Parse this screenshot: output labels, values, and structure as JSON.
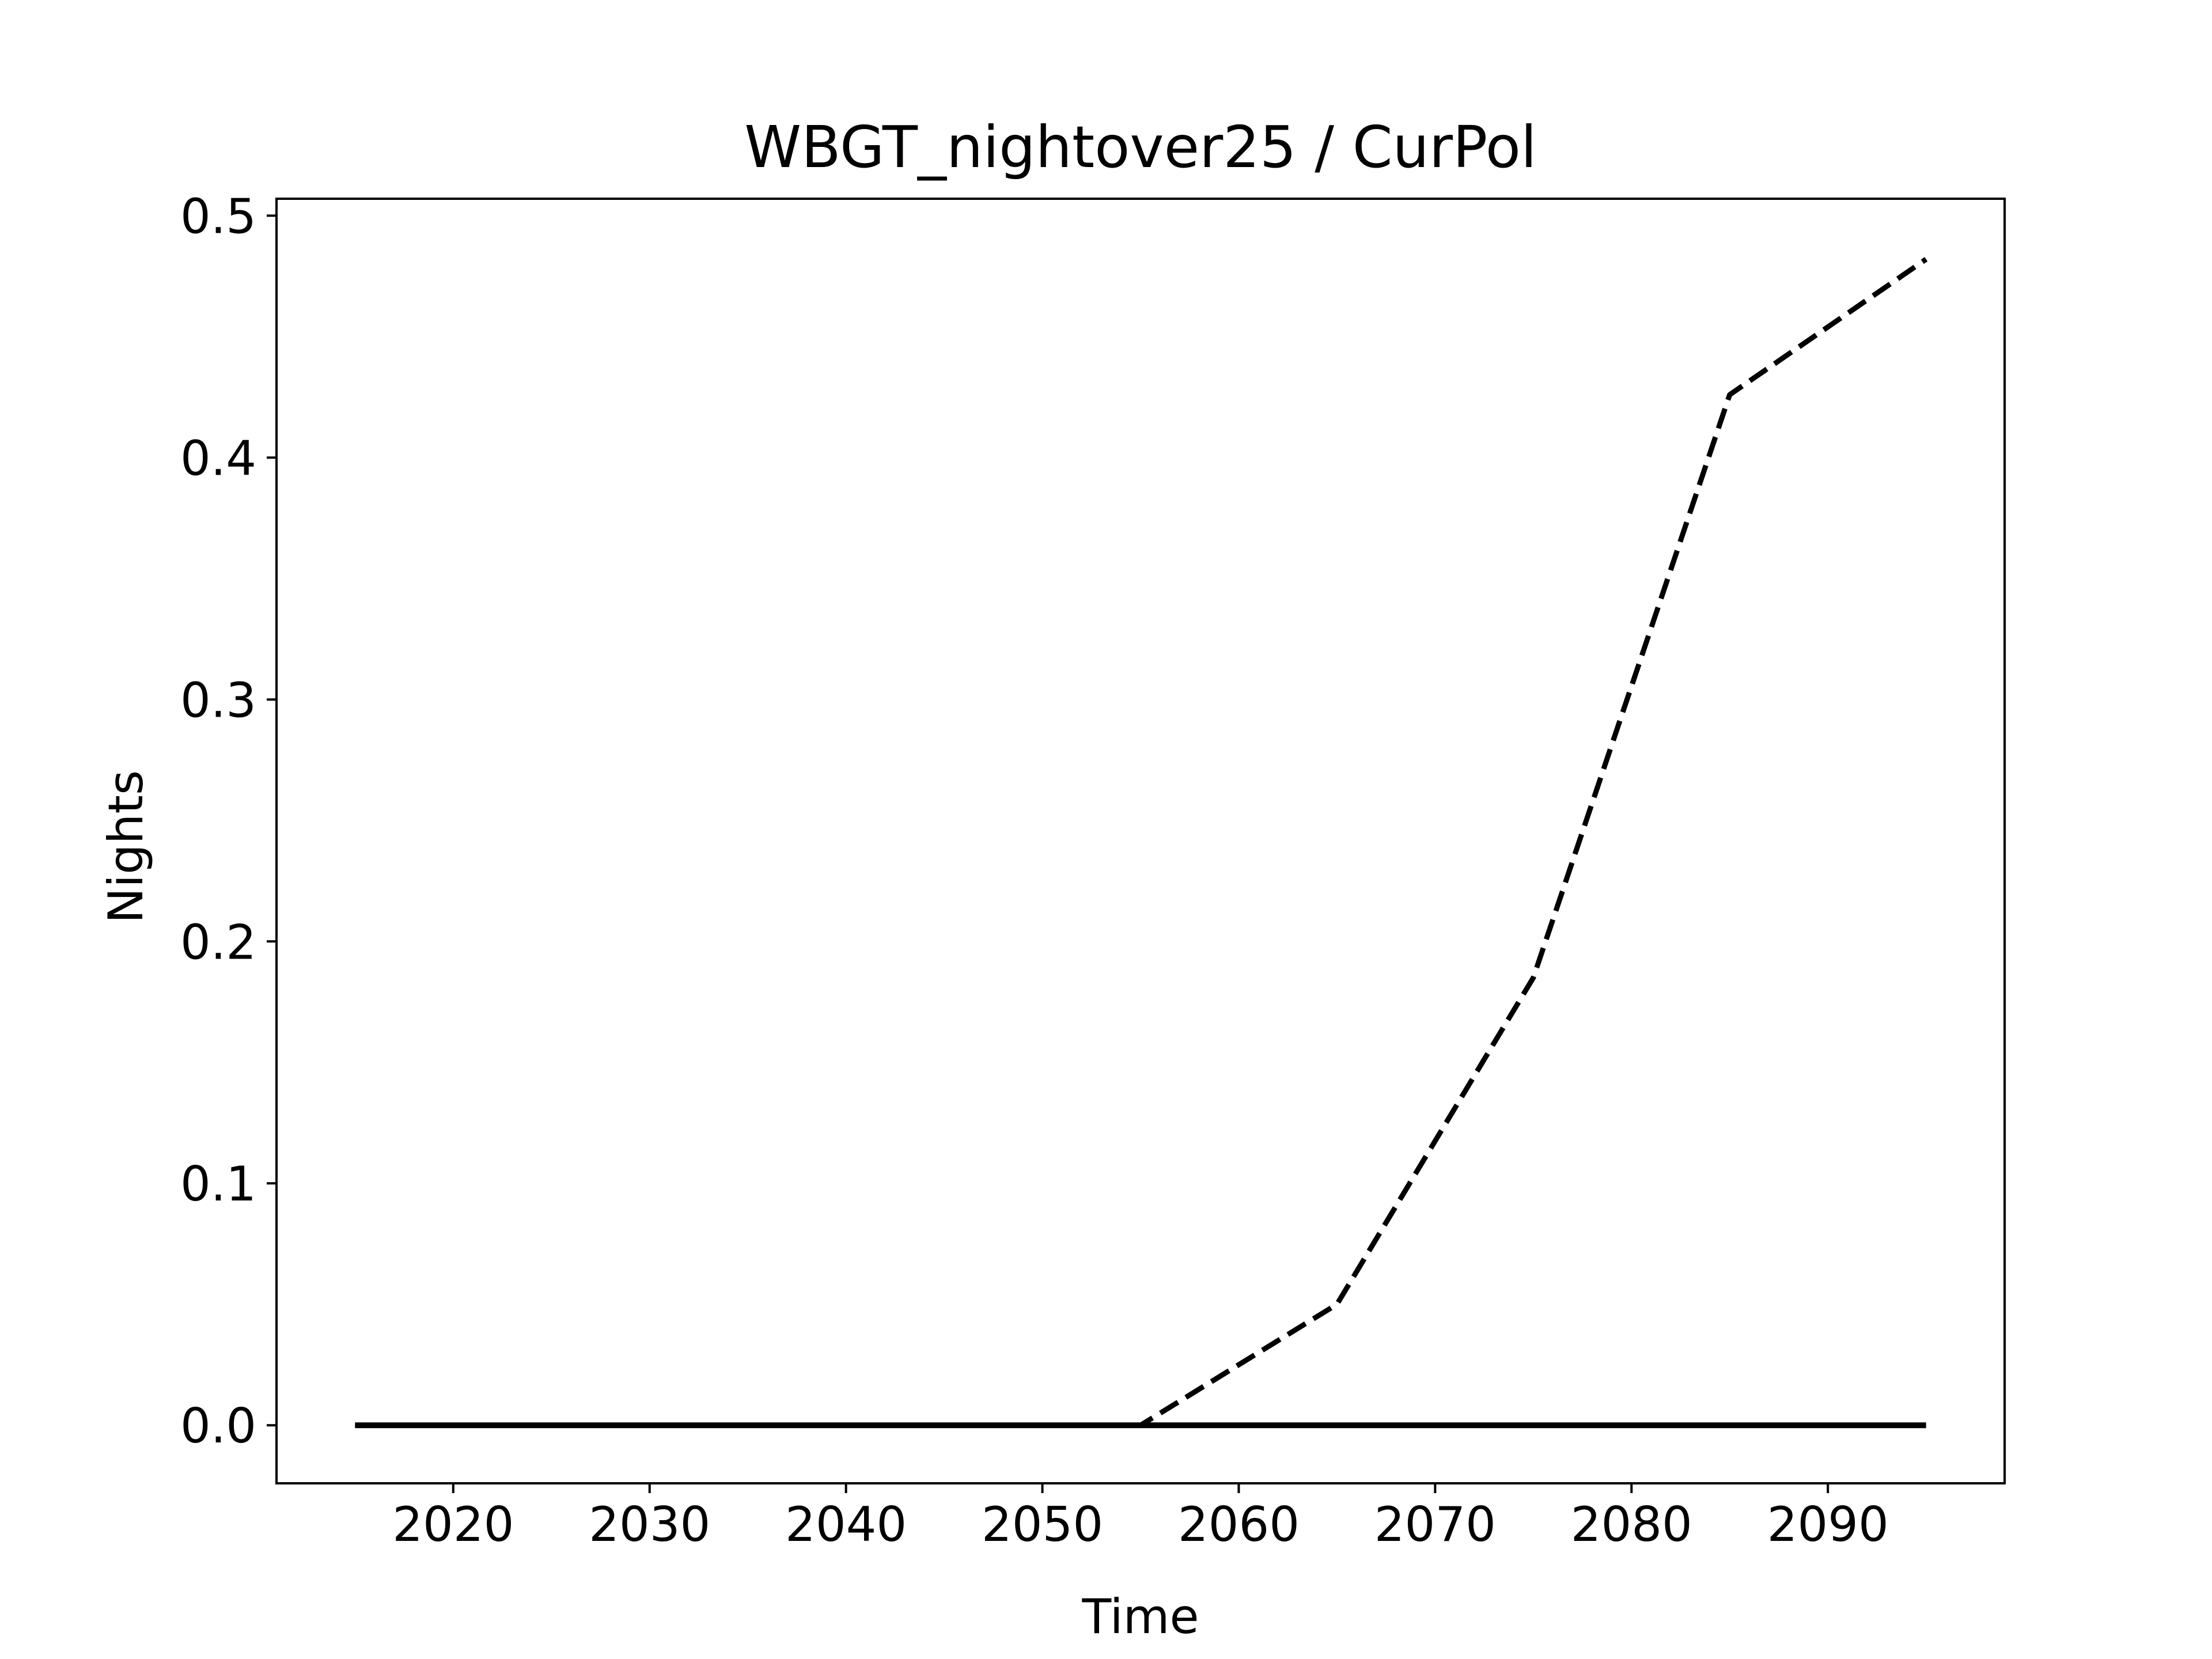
{
  "chart_data": {
    "type": "line",
    "title": "WBGT_nightover25 / CurPol",
    "xlabel": "Time",
    "ylabel": "Nights",
    "xlim": [
      2011,
      2099
    ],
    "ylim": [
      -0.024,
      0.507
    ],
    "x_ticks": [
      2020,
      2030,
      2040,
      2050,
      2060,
      2070,
      2080,
      2090
    ],
    "y_ticks": [
      0.0,
      0.1,
      0.2,
      0.3,
      0.4,
      0.5
    ],
    "x_tick_labels": [
      "2020",
      "2030",
      "2040",
      "2050",
      "2060",
      "2070",
      "2080",
      "2090"
    ],
    "y_tick_labels": [
      "0.0",
      "0.1",
      "0.2",
      "0.3",
      "0.4",
      "0.5"
    ],
    "grid": false,
    "legend": "none",
    "series": [
      {
        "style": "dashed",
        "color": "#000000",
        "x": [
          2015,
          2025,
          2035,
          2045,
          2055,
          2065,
          2075,
          2085,
          2095
        ],
        "y": [
          0.0,
          0.0,
          0.0,
          0.0,
          0.0,
          0.05,
          0.185,
          0.426,
          0.482
        ]
      },
      {
        "style": "solid",
        "color": "#000000",
        "x": [
          2015,
          2025,
          2035,
          2045,
          2055,
          2065,
          2075,
          2085,
          2095
        ],
        "y": [
          0.0,
          0.0,
          0.0,
          0.0,
          0.0,
          0.0,
          0.0,
          0.0,
          0.0
        ]
      }
    ]
  }
}
